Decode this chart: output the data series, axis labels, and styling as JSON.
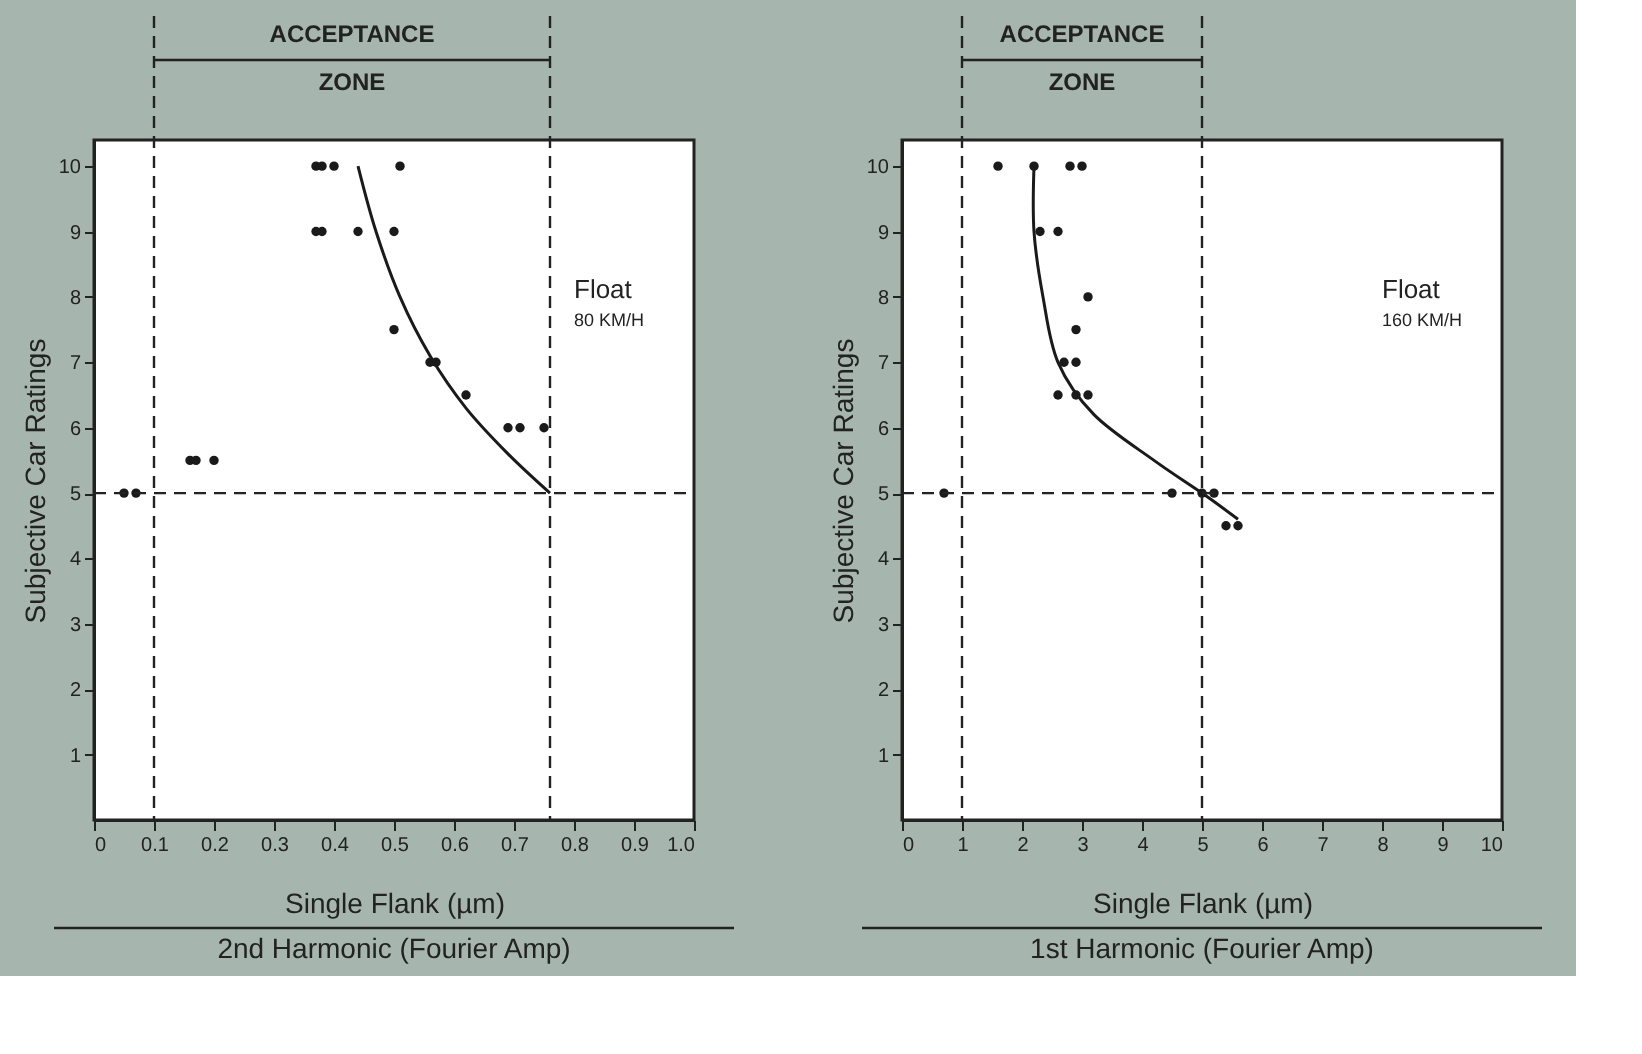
{
  "chart_data": [
    {
      "type": "scatter",
      "xlabel": "Single Flank (µm)",
      "ylabel": "Subjective Car Ratings",
      "xlim": [
        0,
        1.0
      ],
      "ylim": [
        0,
        10.4
      ],
      "xticks": [
        0,
        0.1,
        0.2,
        0.3,
        0.4,
        0.5,
        0.6,
        0.7,
        0.8,
        0.9,
        {
          "value": 1.0,
          "label": "1.0"
        }
      ],
      "yticks": [
        1,
        2,
        3,
        4,
        5,
        6,
        7,
        8,
        9,
        10
      ],
      "grid": false,
      "marker": "circle",
      "series": [
        {
          "color": "#1a1a1a",
          "x": [
            0.05,
            0.07,
            0.16,
            0.17,
            0.2,
            0.37,
            0.38,
            0.4,
            0.51,
            0.37,
            0.38,
            0.44,
            0.5,
            0.5,
            0.56,
            0.57,
            0.62,
            0.69,
            0.71,
            0.75
          ],
          "values": [
            5,
            5,
            5.5,
            5.5,
            5.5,
            10,
            10,
            10,
            10,
            9,
            9,
            9,
            9,
            7.5,
            7,
            7,
            6.5,
            6,
            6,
            6
          ]
        },
        {
          "type": "line",
          "marker": "none",
          "color": "#1a1a1a",
          "line_style": "solid",
          "x": [
            0.44,
            0.47,
            0.51,
            0.56,
            0.62,
            0.69,
            0.76
          ],
          "values": [
            10,
            9,
            8,
            7.1,
            6.3,
            5.6,
            5
          ]
        }
      ],
      "ref_lines": [
        {
          "axis": "x",
          "value": 0.1,
          "line_style": "dashed"
        },
        {
          "axis": "x",
          "value": 0.76,
          "line_style": "dashed"
        },
        {
          "axis": "y",
          "value": 5,
          "line_style": "dashed"
        }
      ],
      "annotations": [
        "ACCEPTANCE ZONE",
        "Float",
        "80 KM/H",
        "2nd Harmonic (Fourier Amp)"
      ]
    },
    {
      "type": "scatter",
      "xlabel": "Single Flank (µm)",
      "ylabel": "Subjective Car Ratings",
      "xlim": [
        0,
        10
      ],
      "ylim": [
        0,
        10.4
      ],
      "xticks": [
        0,
        1,
        2,
        3,
        4,
        5,
        6,
        7,
        8,
        9,
        10
      ],
      "yticks": [
        1,
        2,
        3,
        4,
        5,
        6,
        7,
        8,
        9,
        10
      ],
      "grid": false,
      "marker": "circle",
      "series": [
        {
          "color": "#1a1a1a",
          "x": [
            1.6,
            2.2,
            2.8,
            3.0,
            2.3,
            2.6,
            3.1,
            2.9,
            2.7,
            2.9,
            2.6,
            2.9,
            3.1,
            0.7,
            4.5,
            5.0,
            5.2,
            5.4,
            5.6
          ],
          "values": [
            10,
            10,
            10,
            10,
            9,
            9,
            8,
            7.5,
            7,
            7,
            6.5,
            6.5,
            6.5,
            5,
            5,
            5,
            5,
            4.5,
            4.5
          ]
        },
        {
          "type": "line",
          "marker": "none",
          "color": "#1a1a1a",
          "line_style": "solid",
          "x": [
            2.2,
            2.2,
            2.35,
            2.6,
            3.2,
            4.2,
            5.0,
            5.6
          ],
          "values": [
            10,
            9,
            8,
            7,
            6.2,
            5.5,
            5,
            4.6
          ]
        }
      ],
      "ref_lines": [
        {
          "axis": "x",
          "value": 1,
          "line_style": "dashed"
        },
        {
          "axis": "x",
          "value": 5,
          "line_style": "dashed"
        },
        {
          "axis": "y",
          "value": 5,
          "line_style": "dashed"
        }
      ],
      "annotations": [
        "ACCEPTANCE ZONE",
        "Float",
        "160 KM/H",
        "1st Harmonic (Fourier Amp)"
      ]
    }
  ]
}
